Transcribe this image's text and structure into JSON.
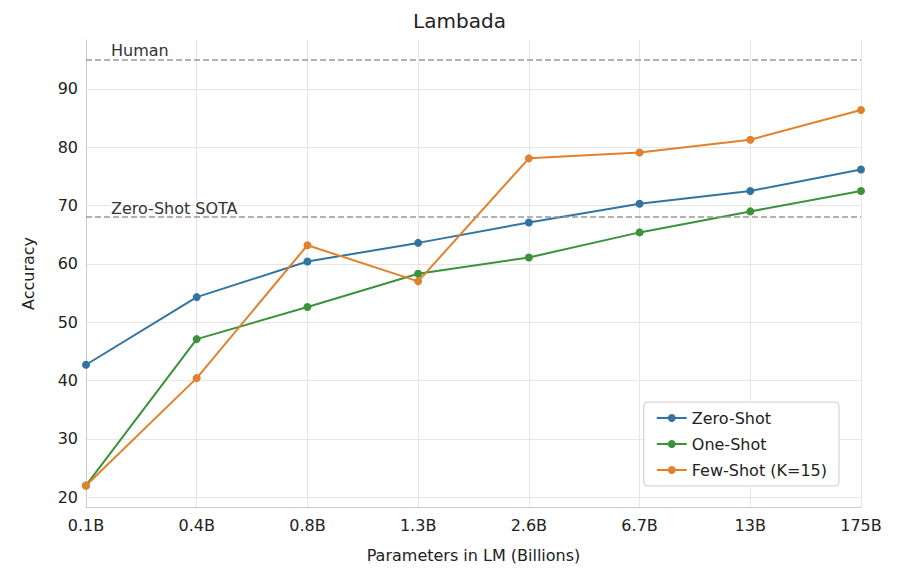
{
  "chart_data": {
    "type": "line",
    "title": "Lambada",
    "x_label": "Parameters in LM (Billions)",
    "y_label": "Accuracy",
    "categories": [
      "0.1B",
      "0.4B",
      "0.8B",
      "1.3B",
      "2.6B",
      "6.7B",
      "13B",
      "175B"
    ],
    "series": [
      {
        "name": "Zero-Shot",
        "color": "#3274a1",
        "values": [
          42.7,
          54.3,
          60.4,
          63.6,
          67.1,
          70.3,
          72.5,
          76.2
        ]
      },
      {
        "name": "One-Shot",
        "color": "#3a923a",
        "values": [
          22.0,
          47.1,
          52.6,
          58.3,
          61.1,
          65.4,
          69.0,
          72.5
        ]
      },
      {
        "name": "Few-Shot (K=15)",
        "color": "#e1812c",
        "values": [
          22.0,
          40.4,
          63.2,
          57.0,
          78.1,
          79.1,
          81.3,
          86.4
        ]
      }
    ],
    "reference_lines": [
      {
        "label": "Human",
        "value": 95.0
      },
      {
        "label": "Zero-Shot SOTA",
        "value": 68.0
      }
    ],
    "ylim": [
      18.3,
      98.4
    ],
    "yticks": [
      20,
      30,
      40,
      50,
      60,
      70,
      80,
      90
    ],
    "grid": true,
    "legend": "lower right",
    "marker": "circle",
    "line_style": "solid"
  }
}
